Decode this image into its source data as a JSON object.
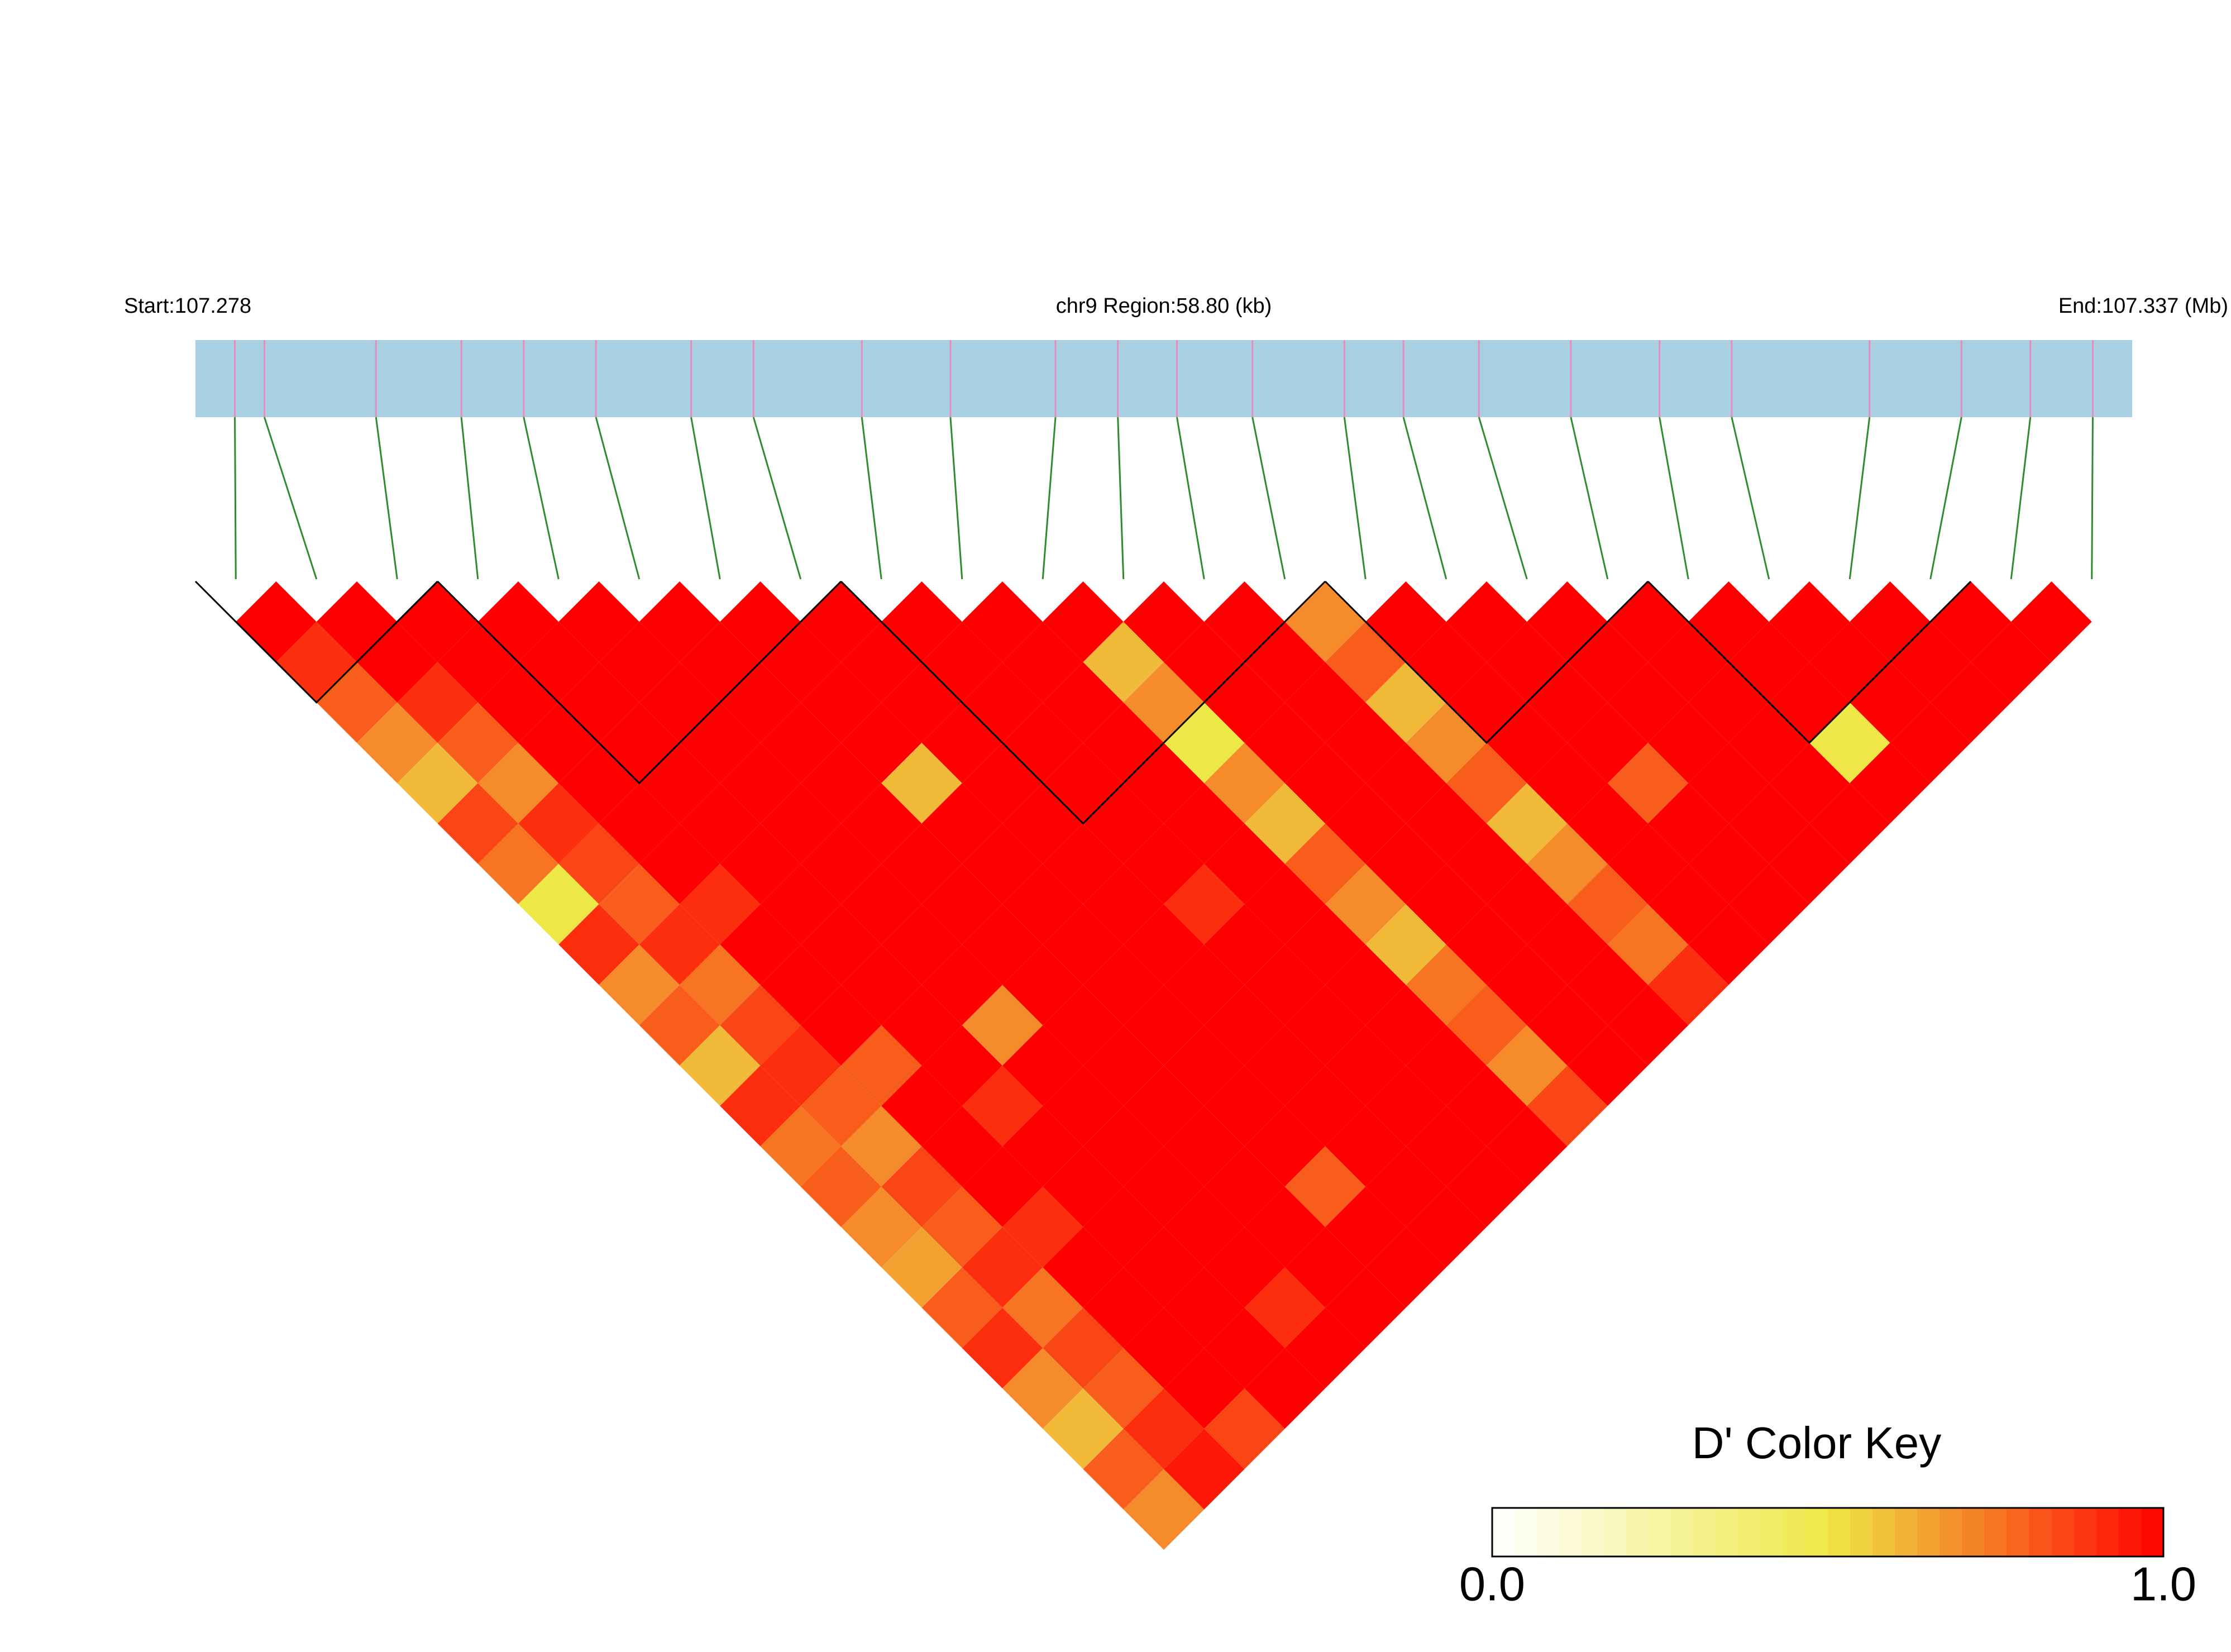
{
  "chart_data": {
    "type": "ld-heatmap",
    "start_label": "Start:107.278",
    "region_label": "chr9 Region:58.80 (kb)",
    "end_label": "End:107.337 (Mb)",
    "xlim": [
      107.278,
      107.337
    ],
    "snp_positions": [
      107.2792,
      107.2801,
      107.2835,
      107.2861,
      107.288,
      107.2902,
      107.2931,
      107.295,
      107.2983,
      107.301,
      107.3042,
      107.3061,
      107.3079,
      107.3102,
      107.313,
      107.3148,
      107.3171,
      107.3199,
      107.3226,
      107.3248,
      107.329,
      107.3318,
      107.3339,
      107.3358
    ],
    "snp_color": "#e58cc0",
    "track_color": "#a8d0e2",
    "connector_color": "#2e8b2e",
    "ld_matrix": [
      [
        1,
        0.9,
        0.8,
        0.7,
        0.6,
        0.85,
        0.75,
        0.5,
        0.9,
        0.7,
        0.8,
        0.6,
        0.9,
        0.75,
        0.8,
        0.7,
        0.65,
        0.8,
        0.9,
        0.7,
        0.6,
        0.8,
        0.7
      ],
      [
        1,
        1,
        0.9,
        0.8,
        0.7,
        0.9,
        0.85,
        0.8,
        0.9,
        0.75,
        0.85,
        0.9,
        0.8,
        0.7,
        0.85,
        0.8,
        0.9,
        0.75,
        0.85,
        0.8,
        0.9,
        0.95
      ],
      [
        1,
        1,
        1,
        1,
        1,
        1,
        1,
        0.9,
        1,
        1,
        1,
        0.8,
        1,
        1,
        1,
        0.9,
        1,
        1,
        1,
        1,
        0.85
      ],
      [
        1,
        1,
        1,
        1,
        1,
        1,
        1,
        1,
        1,
        1,
        1,
        1,
        0.9,
        1,
        1,
        1,
        1,
        1,
        1,
        1
      ],
      [
        1,
        1,
        1,
        1,
        1,
        1,
        1,
        1,
        1,
        1,
        0.7,
        1,
        1,
        1,
        1,
        1,
        1,
        0.9,
        1
      ],
      [
        1,
        1,
        1,
        1,
        1,
        1,
        1,
        1,
        1,
        1,
        1,
        1,
        1,
        1,
        1,
        1,
        1,
        1
      ],
      [
        1,
        1,
        1,
        1,
        0.6,
        1,
        1,
        1,
        1,
        1,
        1,
        1,
        1,
        1,
        0.8,
        1,
        1
      ],
      [
        1,
        1,
        1,
        1,
        1,
        1,
        1,
        1,
        1,
        1,
        1,
        1,
        1,
        1,
        1,
        1
      ],
      [
        1,
        1,
        1,
        1,
        1,
        1,
        1,
        0.9,
        1,
        1,
        1,
        1,
        1,
        1,
        1
      ],
      [
        1,
        1,
        1,
        1,
        1,
        1,
        1,
        1,
        1,
        1,
        1,
        1,
        1,
        1
      ],
      [
        1,
        0.6,
        0.7,
        0.5,
        0.7,
        0.6,
        0.8,
        0.7,
        0.6,
        0.75,
        0.8,
        0.7,
        0.85
      ],
      [
        1,
        1,
        1,
        1,
        1,
        1,
        1,
        1,
        1,
        1,
        1,
        1
      ],
      [
        1,
        1,
        1,
        1,
        1,
        1,
        1,
        1,
        1,
        1,
        1
      ],
      [
        0.7,
        0.8,
        0.6,
        0.7,
        0.8,
        0.6,
        0.7,
        0.8,
        0.75,
        0.9
      ],
      [
        1,
        1,
        1,
        1,
        1,
        1,
        1,
        1,
        1
      ],
      [
        1,
        1,
        1,
        1,
        0.8,
        1,
        1,
        1
      ],
      [
        1,
        1,
        1,
        1,
        1,
        1,
        1
      ],
      [
        1,
        1,
        1,
        1,
        1,
        1
      ],
      [
        1,
        1,
        1,
        0.5,
        1
      ],
      [
        1,
        1,
        1,
        1
      ],
      [
        1,
        1,
        1
      ],
      [
        1,
        1
      ],
      [
        1
      ]
    ],
    "blocks": [
      [
        0,
        2
      ],
      [
        3,
        7
      ],
      [
        8,
        13
      ],
      [
        14,
        17
      ],
      [
        18,
        21
      ]
    ],
    "colorkey_title": "D' Color Key",
    "colorkey_colors": [
      "#ffffff",
      "#eee846",
      "#ff0000"
    ],
    "colorkey_lim": [
      0,
      1
    ],
    "colorkey_ticks": [
      {
        "value": 0,
        "label": "0.0"
      },
      {
        "value": 1,
        "label": "1.0"
      }
    ]
  }
}
